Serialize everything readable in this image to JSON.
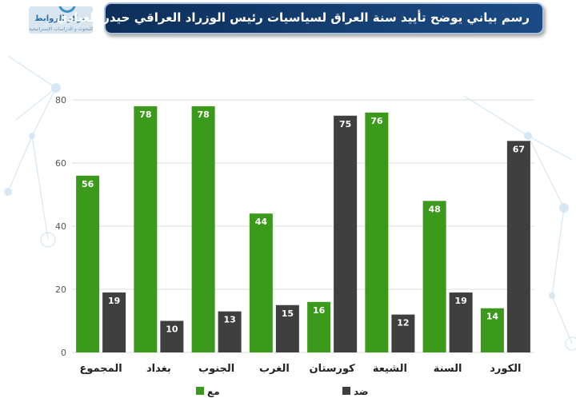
{
  "header": {
    "title": "رسم بياني يوضح تأييد سنة العراق لسياسيات رئيس الوزراد العراقي حيدر العبادي"
  },
  "logo": {
    "name": "مركز الروابط",
    "tagline": "للبحوث و الدراسات الإستراتيجية"
  },
  "colors": {
    "support": "#3b9a1c",
    "oppose": "#3f3f3f",
    "grid": "#dcdcdc",
    "title_bg": "#123c6e"
  },
  "chart_data": {
    "type": "bar",
    "categories": [
      "المجموع",
      "بغداد",
      "الجنوب",
      "الغرب",
      "كورستان",
      "الشيعة",
      "السنة",
      "الكورد"
    ],
    "series": [
      {
        "name": "مع",
        "values": [
          56,
          78,
          78,
          44,
          16,
          76,
          48,
          14
        ]
      },
      {
        "name": "ضد",
        "values": [
          19,
          10,
          13,
          15,
          75,
          12,
          19,
          67
        ]
      }
    ],
    "yticks": [
      0,
      20,
      40,
      60,
      80
    ],
    "ylim": [
      0,
      80
    ],
    "grid": true,
    "legend": "bottom",
    "title": "",
    "xlabel": "",
    "ylabel": ""
  }
}
